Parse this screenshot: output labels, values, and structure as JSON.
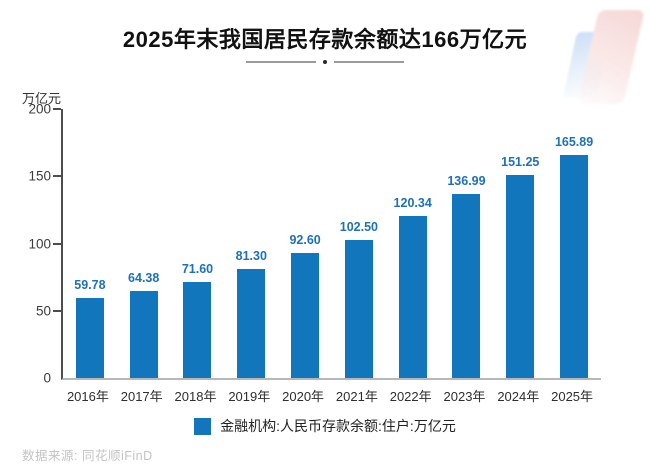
{
  "header": {
    "title": "2025年末我国居民存款余额达166万亿元"
  },
  "axis": {
    "unit_label": "万亿元"
  },
  "legend": {
    "label": "金融机构:人民币存款余额:住户:万亿元"
  },
  "footer": {
    "source": "数据来源: 同花顺iFinD"
  },
  "colors": {
    "bar": "#1276bd",
    "value_label": "#1d71b8",
    "axis_line": "#4d4d4d",
    "baseline": "#b7b7b7",
    "title_text": "#111111",
    "source_text": "#c4c4c4"
  },
  "chart_data": {
    "type": "bar",
    "title": "2025年末我国居民存款余额达166万亿元",
    "categories": [
      "2016年",
      "2017年",
      "2018年",
      "2019年",
      "2020年",
      "2021年",
      "2022年",
      "2023年",
      "2024年",
      "2025年"
    ],
    "values": [
      59.78,
      64.38,
      71.6,
      81.3,
      92.6,
      102.5,
      120.34,
      136.99,
      151.25,
      165.89
    ],
    "values_display": [
      "59.78",
      "64.38",
      "71.60",
      "81.30",
      "92.60",
      "102.50",
      "120.34",
      "136.99",
      "151.25",
      "165.89"
    ],
    "xlabel": "",
    "ylabel": "万亿元",
    "ylim": [
      0,
      200
    ],
    "yticks": [
      0,
      50,
      100,
      150,
      200
    ],
    "grid": false,
    "legend": "金融机构:人民币存款余额:住户:万亿元",
    "legend_position": "bottom",
    "bar_color": "#1276bd",
    "value_label_color": "#1d71b8"
  }
}
